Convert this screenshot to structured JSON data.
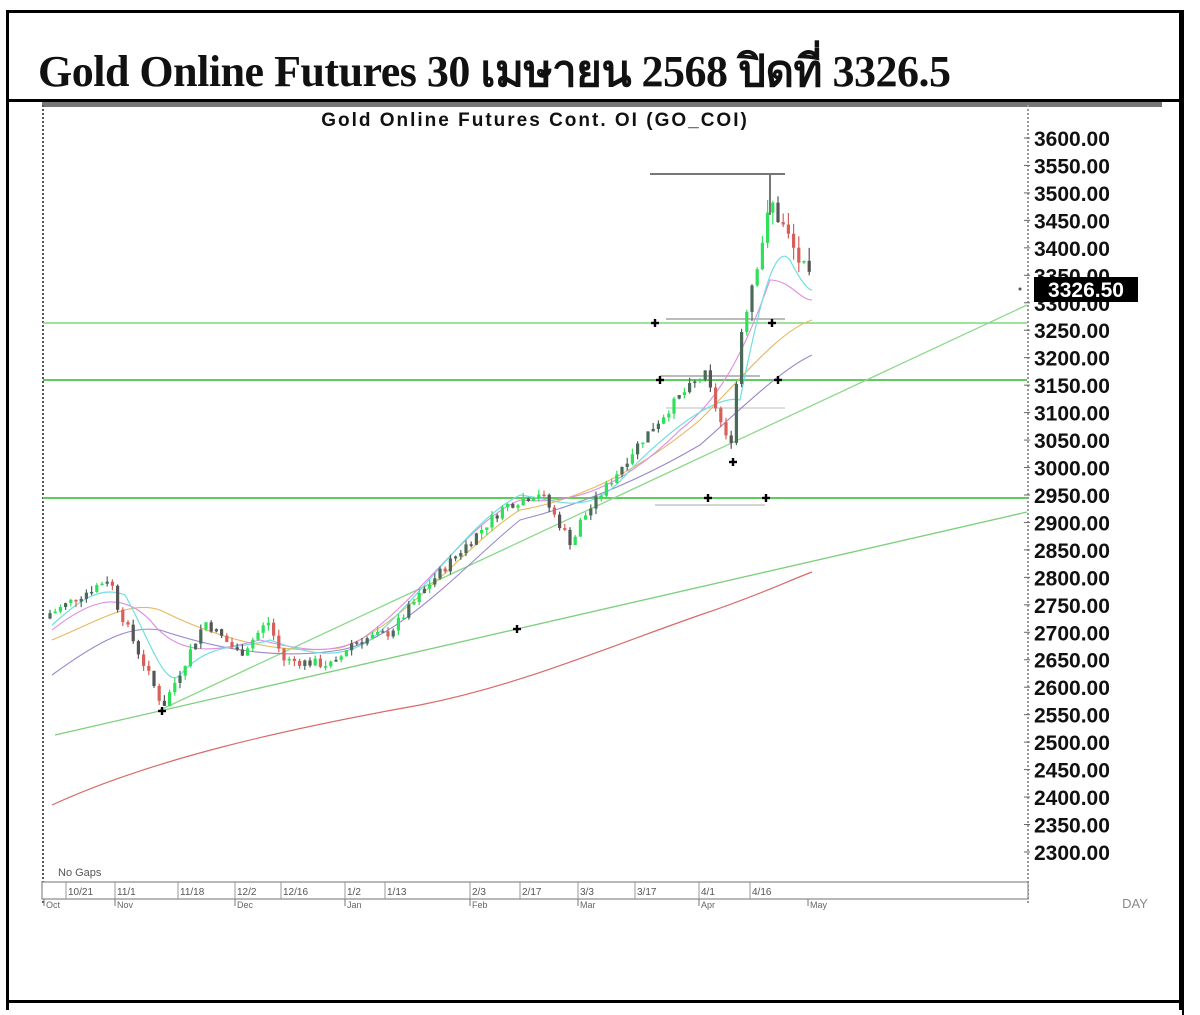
{
  "page": {
    "title": "Gold Online Futures 30 เมษายน 2568 ปิดที่ 3326.5"
  },
  "chart_data": {
    "type": "candlestick",
    "title": "Gold Online Futures Cont. OI (GO_COI)",
    "xlabel": "",
    "ylabel": "",
    "ylim": [
      2300,
      3600
    ],
    "yticks": [
      "3600.00",
      "3550.00",
      "3500.00",
      "3450.00",
      "3400.00",
      "3350.00",
      "3300.00",
      "3250.00",
      "3200.00",
      "3150.00",
      "3100.00",
      "3050.00",
      "3000.00",
      "2950.00",
      "2900.00",
      "2850.00",
      "2800.00",
      "2750.00",
      "2700.00",
      "2650.00",
      "2600.00",
      "2550.00",
      "2500.00",
      "2450.00",
      "2400.00",
      "2350.00",
      "2300.00"
    ],
    "xticks": [
      "10/21",
      "11/1",
      "11/18",
      "12/2",
      "12/16",
      "1/2",
      "1/13",
      "2/3",
      "2/17",
      "3/3",
      "3/17",
      "4/1",
      "4/16"
    ],
    "months": [
      "Oct",
      "Nov",
      "Dec",
      "Jan",
      "Feb",
      "Mar",
      "Apr",
      "May"
    ],
    "last_price_label": "3326.50",
    "periodicity": "DAY",
    "footnote": "No Gaps",
    "grid": false,
    "horizontal_levels": [
      3265,
      3160,
      2945
    ],
    "approx_closes": [
      {
        "date": "10/21",
        "close": 2735
      },
      {
        "date": "10/31",
        "close": 2800
      },
      {
        "date": "11/1",
        "close": 2750
      },
      {
        "date": "11/14",
        "close": 2565
      },
      {
        "date": "11/25",
        "close": 2720
      },
      {
        "date": "12/2",
        "close": 2660
      },
      {
        "date": "12/9",
        "close": 2720
      },
      {
        "date": "12/16",
        "close": 2650
      },
      {
        "date": "12/30",
        "close": 2640
      },
      {
        "date": "1/2",
        "close": 2680
      },
      {
        "date": "1/13",
        "close": 2700
      },
      {
        "date": "1/24",
        "close": 2790
      },
      {
        "date": "2/3",
        "close": 2870
      },
      {
        "date": "2/11",
        "close": 2930
      },
      {
        "date": "2/17",
        "close": 2955
      },
      {
        "date": "2/28",
        "close": 2860
      },
      {
        "date": "3/3",
        "close": 2900
      },
      {
        "date": "3/17",
        "close": 3040
      },
      {
        "date": "3/26",
        "close": 3130
      },
      {
        "date": "4/1",
        "close": 3170
      },
      {
        "date": "4/8",
        "close": 3030
      },
      {
        "date": "4/11",
        "close": 3260
      },
      {
        "date": "4/16",
        "close": 3400
      },
      {
        "date": "4/22",
        "close": 3480
      },
      {
        "date": "4/30",
        "close": 3326.5
      }
    ],
    "series": [
      {
        "name": "Price (candles)",
        "color_up": "#22dd44",
        "color_down": "#d9534f"
      },
      {
        "name": "MA short",
        "color": "#55dddd"
      },
      {
        "name": "MA medium",
        "color": "#dd88dd"
      },
      {
        "name": "MA long",
        "color": "#e8b860"
      },
      {
        "name": "MA longer",
        "color": "#8866cc"
      },
      {
        "name": "MA 200",
        "color": "#cc4444"
      },
      {
        "name": "Trendline 1",
        "color": "#66cc66"
      },
      {
        "name": "Trendline 2",
        "color": "#66cc66"
      }
    ],
    "colors": {
      "support_resistance": "#66dd66",
      "annotation_line": "#999999",
      "marker": "#000000"
    }
  }
}
